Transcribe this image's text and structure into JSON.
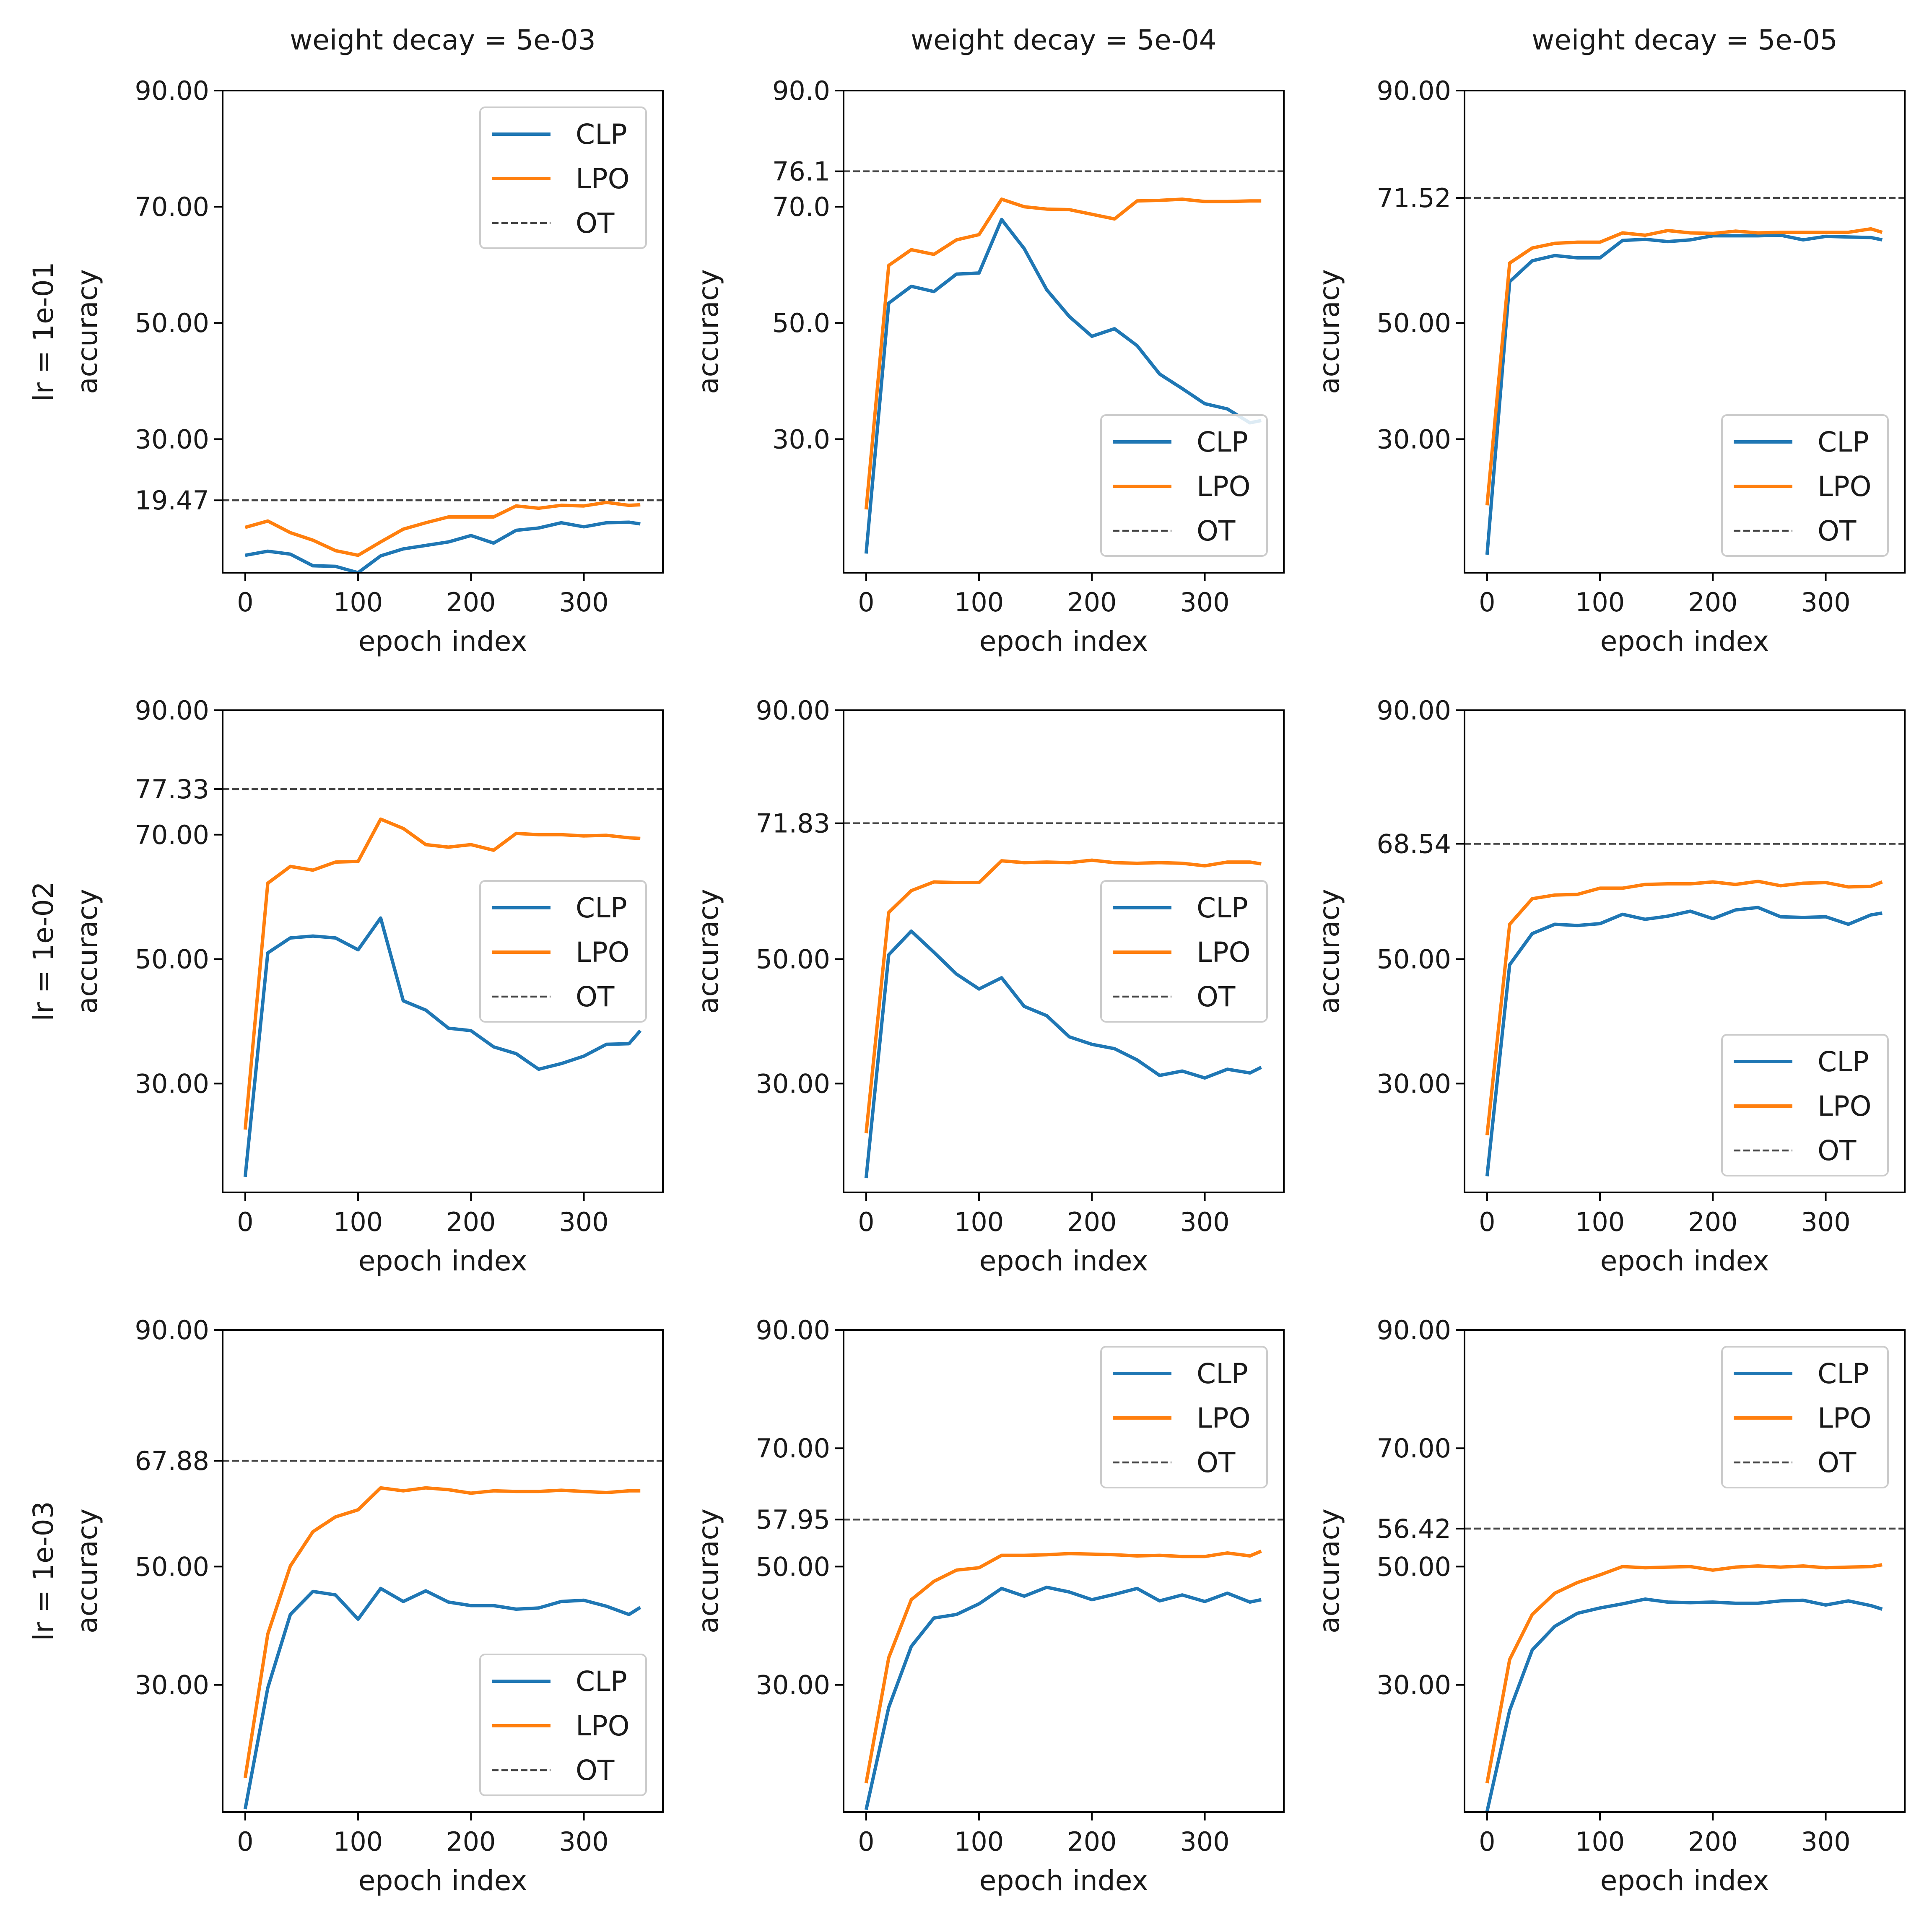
{
  "figure": {
    "column_titles": [
      "weight decay = 5e-03",
      "weight decay = 5e-04",
      "weight decay = 5e-05"
    ],
    "row_labels": [
      "lr = 1e-01",
      "lr = 1e-02",
      "lr = 1e-03"
    ],
    "colors": {
      "CLP": "#1f77b4",
      "LPO": "#ff7f0e",
      "OT": "#444444",
      "axes": "#000000"
    }
  },
  "chart_data": [
    {
      "type": "line",
      "title": "weight decay = 5e-03",
      "row_label": "lr = 1e-01",
      "xlabel": "epoch index",
      "ylabel": "accuracy",
      "xlim": [
        -20,
        370
      ],
      "ylim": [
        7,
        90
      ],
      "xticks": [
        0,
        100,
        200,
        300
      ],
      "xtick_labels": [
        "0",
        "100",
        "200",
        "300"
      ],
      "yticks": [
        19.47,
        30,
        50,
        70,
        90
      ],
      "ytick_labels": [
        "19.47",
        "30.00",
        "50.00",
        "70.00",
        "90.00"
      ],
      "legend": {
        "location": "top-right",
        "entries": [
          "CLP",
          "LPO",
          "OT"
        ]
      },
      "x": [
        0,
        20,
        40,
        60,
        80,
        100,
        120,
        140,
        160,
        180,
        200,
        220,
        240,
        260,
        280,
        300,
        320,
        340,
        350
      ],
      "series": [
        {
          "name": "CLP",
          "values": [
            10,
            10.7,
            10.2,
            8.2,
            8.1,
            7.0,
            9.9,
            11.1,
            11.7,
            12.3,
            13.4,
            12.1,
            14.3,
            14.7,
            15.6,
            14.9,
            15.6,
            15.7,
            15.4
          ]
        },
        {
          "name": "LPO",
          "values": [
            14.8,
            15.9,
            13.9,
            12.6,
            10.8,
            10.0,
            12.3,
            14.5,
            15.6,
            16.6,
            16.6,
            16.6,
            18.5,
            18.1,
            18.6,
            18.5,
            19.1,
            18.6,
            18.7
          ]
        }
      ],
      "reference": {
        "name": "OT",
        "value": 19.47,
        "label": "19.47"
      }
    },
    {
      "type": "line",
      "title": "weight decay = 5e-04",
      "row_label": "lr = 1e-01",
      "xlabel": "epoch index",
      "ylabel": "accuracy",
      "xlim": [
        -20,
        370
      ],
      "ylim": [
        7,
        90
      ],
      "xticks": [
        0,
        100,
        200,
        300
      ],
      "xtick_labels": [
        "0",
        "100",
        "200",
        "300"
      ],
      "yticks": [
        30,
        50,
        70,
        76.1,
        90
      ],
      "ytick_labels": [
        "30.0",
        "50.0",
        "70.0",
        "76.1",
        "90.0"
      ],
      "legend": {
        "location": "bottom-right",
        "entries": [
          "CLP",
          "LPO",
          "OT"
        ]
      },
      "x": [
        0,
        20,
        40,
        60,
        80,
        100,
        120,
        140,
        160,
        180,
        200,
        220,
        240,
        260,
        280,
        300,
        320,
        340,
        350
      ],
      "series": [
        {
          "name": "CLP",
          "values": [
            10.3,
            53.4,
            56.3,
            55.4,
            58.4,
            58.6,
            67.8,
            62.8,
            55.7,
            51.1,
            47.7,
            49.0,
            46.1,
            41.2,
            38.7,
            36.1,
            35.2,
            32.8,
            33.2
          ]
        },
        {
          "name": "LPO",
          "values": [
            17.9,
            59.9,
            62.6,
            61.8,
            64.3,
            65.2,
            71.3,
            70.0,
            69.6,
            69.5,
            68.7,
            67.9,
            71.0,
            71.1,
            71.3,
            70.9,
            70.9,
            71.0,
            71.0
          ]
        }
      ],
      "reference": {
        "name": "OT",
        "value": 76.1,
        "label": "76.1"
      }
    },
    {
      "type": "line",
      "title": "weight decay = 5e-05",
      "row_label": "lr = 1e-01",
      "xlabel": "epoch index",
      "ylabel": "accuracy",
      "xlim": [
        -20,
        370
      ],
      "ylim": [
        7,
        90
      ],
      "xticks": [
        0,
        100,
        200,
        300
      ],
      "xtick_labels": [
        "0",
        "100",
        "200",
        "300"
      ],
      "yticks": [
        30,
        50,
        71.52,
        90
      ],
      "ytick_labels": [
        "30.00",
        "50.00",
        "71.52",
        "90.00"
      ],
      "legend": {
        "location": "bottom-right",
        "entries": [
          "CLP",
          "LPO",
          "OT"
        ]
      },
      "x": [
        0,
        20,
        40,
        60,
        80,
        100,
        120,
        140,
        160,
        180,
        200,
        220,
        240,
        260,
        280,
        300,
        320,
        340,
        350
      ],
      "series": [
        {
          "name": "CLP",
          "values": [
            10.1,
            57.1,
            60.7,
            61.6,
            61.2,
            61.2,
            64.2,
            64.4,
            64.0,
            64.3,
            65.0,
            65.0,
            65.0,
            65.1,
            64.3,
            64.9,
            64.8,
            64.7,
            64.3
          ]
        },
        {
          "name": "LPO",
          "values": [
            18.6,
            60.3,
            62.9,
            63.7,
            63.9,
            63.9,
            65.5,
            65.1,
            65.9,
            65.5,
            65.4,
            65.8,
            65.5,
            65.6,
            65.6,
            65.6,
            65.6,
            66.2,
            65.6
          ]
        }
      ],
      "reference": {
        "name": "OT",
        "value": 71.52,
        "label": "71.52"
      }
    },
    {
      "type": "line",
      "title": "weight decay = 5e-03",
      "row_label": "lr = 1e-02",
      "xlabel": "epoch index",
      "ylabel": "accuracy",
      "xlim": [
        -20,
        370
      ],
      "ylim": [
        12.5,
        90
      ],
      "xticks": [
        0,
        100,
        200,
        300
      ],
      "xtick_labels": [
        "0",
        "100",
        "200",
        "300"
      ],
      "yticks": [
        30,
        50,
        70,
        77.33,
        90
      ],
      "ytick_labels": [
        "30.00",
        "50.00",
        "70.00",
        "77.33",
        "90.00"
      ],
      "legend": {
        "location": "center-right",
        "entries": [
          "CLP",
          "LPO",
          "OT"
        ]
      },
      "x": [
        0,
        20,
        40,
        60,
        80,
        100,
        120,
        140,
        160,
        180,
        200,
        220,
        240,
        260,
        280,
        300,
        320,
        340,
        350
      ],
      "series": [
        {
          "name": "CLP",
          "values": [
            15.0,
            51.0,
            53.4,
            53.7,
            53.4,
            51.5,
            56.6,
            43.3,
            41.8,
            38.9,
            38.5,
            35.9,
            34.8,
            32.3,
            33.2,
            34.4,
            36.3,
            36.4,
            38.5
          ]
        },
        {
          "name": "LPO",
          "values": [
            22.6,
            62.2,
            64.9,
            64.3,
            65.6,
            65.7,
            72.5,
            71.0,
            68.4,
            68.0,
            68.4,
            67.5,
            70.2,
            70.0,
            70.0,
            69.8,
            69.9,
            69.5,
            69.4
          ]
        }
      ],
      "reference": {
        "name": "OT",
        "value": 77.33,
        "label": "77.33"
      }
    },
    {
      "type": "line",
      "title": "weight decay = 5e-04",
      "row_label": "lr = 1e-02",
      "xlabel": "epoch index",
      "ylabel": "accuracy",
      "xlim": [
        -20,
        370
      ],
      "ylim": [
        12.5,
        90
      ],
      "xticks": [
        0,
        100,
        200,
        300
      ],
      "xtick_labels": [
        "0",
        "100",
        "200",
        "300"
      ],
      "yticks": [
        30,
        50,
        71.83,
        90
      ],
      "ytick_labels": [
        "30.00",
        "50.00",
        "71.83",
        "90.00"
      ],
      "legend": {
        "location": "center-right",
        "entries": [
          "CLP",
          "LPO",
          "OT"
        ]
      },
      "x": [
        0,
        20,
        40,
        60,
        80,
        100,
        120,
        140,
        160,
        180,
        200,
        220,
        240,
        260,
        280,
        300,
        320,
        340,
        350
      ],
      "series": [
        {
          "name": "CLP",
          "values": [
            14.8,
            50.7,
            54.5,
            51.1,
            47.6,
            45.2,
            47.0,
            42.4,
            40.9,
            37.5,
            36.3,
            35.6,
            33.8,
            31.3,
            32.0,
            30.9,
            32.3,
            31.7,
            32.6
          ]
        },
        {
          "name": "LPO",
          "values": [
            22.0,
            57.5,
            61.0,
            62.4,
            62.3,
            62.3,
            65.8,
            65.5,
            65.6,
            65.5,
            65.9,
            65.5,
            65.4,
            65.5,
            65.4,
            65.0,
            65.6,
            65.6,
            65.3
          ]
        }
      ],
      "reference": {
        "name": "OT",
        "value": 71.83,
        "label": "71.83"
      }
    },
    {
      "type": "line",
      "title": "weight decay = 5e-05",
      "row_label": "lr = 1e-02",
      "xlabel": "epoch index",
      "ylabel": "accuracy",
      "xlim": [
        -20,
        370
      ],
      "ylim": [
        12.5,
        90
      ],
      "xticks": [
        0,
        100,
        200,
        300
      ],
      "xtick_labels": [
        "0",
        "100",
        "200",
        "300"
      ],
      "yticks": [
        30,
        50,
        68.54,
        90
      ],
      "ytick_labels": [
        "30.00",
        "50.00",
        "68.54",
        "90.00"
      ],
      "legend": {
        "location": "bottom-right",
        "entries": [
          "CLP",
          "LPO",
          "OT"
        ]
      },
      "x": [
        0,
        20,
        40,
        60,
        80,
        100,
        120,
        140,
        160,
        180,
        200,
        220,
        240,
        260,
        280,
        300,
        320,
        340,
        350
      ],
      "series": [
        {
          "name": "CLP",
          "values": [
            15.1,
            49.1,
            54.1,
            55.6,
            55.4,
            55.7,
            57.2,
            56.4,
            56.9,
            57.7,
            56.5,
            57.9,
            58.3,
            56.8,
            56.7,
            56.8,
            55.6,
            57.1,
            57.4
          ]
        },
        {
          "name": "LPO",
          "values": [
            21.7,
            55.6,
            59.7,
            60.3,
            60.4,
            61.4,
            61.4,
            62.0,
            62.1,
            62.1,
            62.4,
            62.0,
            62.5,
            61.8,
            62.2,
            62.3,
            61.6,
            61.7,
            62.4
          ]
        }
      ],
      "reference": {
        "name": "OT",
        "value": 68.54,
        "label": "68.54"
      }
    },
    {
      "type": "line",
      "title": "weight decay = 5e-03",
      "row_label": "lr = 1e-03",
      "xlabel": "epoch index",
      "ylabel": "accuracy",
      "xlim": [
        -20,
        370
      ],
      "ylim": [
        8.5,
        90
      ],
      "xticks": [
        0,
        100,
        200,
        300
      ],
      "xtick_labels": [
        "0",
        "100",
        "200",
        "300"
      ],
      "yticks": [
        30,
        50,
        67.88,
        90
      ],
      "ytick_labels": [
        "30.00",
        "50.00",
        "67.88",
        "90.00"
      ],
      "legend": {
        "location": "bottom-right",
        "entries": [
          "CLP",
          "LPO",
          "OT"
        ]
      },
      "x": [
        0,
        20,
        40,
        60,
        80,
        100,
        120,
        140,
        160,
        180,
        200,
        220,
        240,
        260,
        280,
        300,
        320,
        340,
        350
      ],
      "series": [
        {
          "name": "CLP",
          "values": [
            9.0,
            29.5,
            41.9,
            45.8,
            45.2,
            41.1,
            46.3,
            44.1,
            45.9,
            44.0,
            43.4,
            43.4,
            42.8,
            43.0,
            44.1,
            44.3,
            43.3,
            41.9,
            43.1
          ]
        },
        {
          "name": "LPO",
          "values": [
            14.3,
            38.6,
            50.1,
            55.9,
            58.4,
            59.6,
            63.3,
            62.8,
            63.3,
            63.0,
            62.4,
            62.8,
            62.7,
            62.7,
            62.9,
            62.7,
            62.5,
            62.8,
            62.8
          ]
        }
      ],
      "reference": {
        "name": "OT",
        "value": 67.88,
        "label": "67.88"
      }
    },
    {
      "type": "line",
      "title": "weight decay = 5e-04",
      "row_label": "lr = 1e-03",
      "xlabel": "epoch index",
      "ylabel": "accuracy",
      "xlim": [
        -20,
        370
      ],
      "ylim": [
        8.5,
        90
      ],
      "xticks": [
        0,
        100,
        200,
        300
      ],
      "xtick_labels": [
        "0",
        "100",
        "200",
        "300"
      ],
      "yticks": [
        30,
        50,
        57.95,
        70,
        90
      ],
      "ytick_labels": [
        "30.00",
        "50.00",
        "57.95",
        "70.00",
        "90.00"
      ],
      "legend": {
        "location": "top-right",
        "entries": [
          "CLP",
          "LPO",
          "OT"
        ]
      },
      "x": [
        0,
        20,
        40,
        60,
        80,
        100,
        120,
        140,
        160,
        180,
        200,
        220,
        240,
        260,
        280,
        300,
        320,
        340,
        350
      ],
      "series": [
        {
          "name": "CLP",
          "values": [
            8.9,
            26.2,
            36.5,
            41.3,
            41.9,
            43.7,
            46.3,
            45.0,
            46.5,
            45.7,
            44.4,
            45.3,
            46.3,
            44.2,
            45.2,
            44.1,
            45.5,
            44.0,
            44.4
          ]
        },
        {
          "name": "LPO",
          "values": [
            13.4,
            34.6,
            44.4,
            47.5,
            49.4,
            49.8,
            51.9,
            51.9,
            52.0,
            52.2,
            52.1,
            52.0,
            51.8,
            51.9,
            51.7,
            51.7,
            52.3,
            51.8,
            52.6
          ]
        }
      ],
      "reference": {
        "name": "OT",
        "value": 57.95,
        "label": "57.95"
      }
    },
    {
      "type": "line",
      "title": "weight decay = 5e-05",
      "row_label": "lr = 1e-03",
      "xlabel": "epoch index",
      "ylabel": "accuracy",
      "xlim": [
        -20,
        370
      ],
      "ylim": [
        8.5,
        90
      ],
      "xticks": [
        0,
        100,
        200,
        300
      ],
      "xtick_labels": [
        "0",
        "100",
        "200",
        "300"
      ],
      "yticks": [
        30,
        50,
        56.42,
        70,
        90
      ],
      "ytick_labels": [
        "30.00",
        "50.00",
        "56.42",
        "70.00",
        "90.00"
      ],
      "legend": {
        "location": "top-right",
        "entries": [
          "CLP",
          "LPO",
          "OT"
        ]
      },
      "x": [
        0,
        20,
        40,
        60,
        80,
        100,
        120,
        140,
        160,
        180,
        200,
        220,
        240,
        260,
        280,
        300,
        320,
        340,
        350
      ],
      "series": [
        {
          "name": "CLP",
          "values": [
            8.6,
            25.7,
            35.9,
            39.9,
            42.1,
            43.0,
            43.7,
            44.5,
            44.0,
            43.9,
            44.0,
            43.8,
            43.8,
            44.2,
            44.3,
            43.5,
            44.2,
            43.4,
            42.8
          ]
        },
        {
          "name": "LPO",
          "values": [
            13.4,
            34.3,
            41.9,
            45.5,
            47.3,
            48.6,
            50.0,
            49.8,
            49.9,
            50.0,
            49.4,
            49.9,
            50.1,
            49.9,
            50.1,
            49.8,
            49.9,
            50.0,
            50.3
          ]
        }
      ],
      "reference": {
        "name": "OT",
        "value": 56.42,
        "label": "56.42"
      }
    }
  ]
}
